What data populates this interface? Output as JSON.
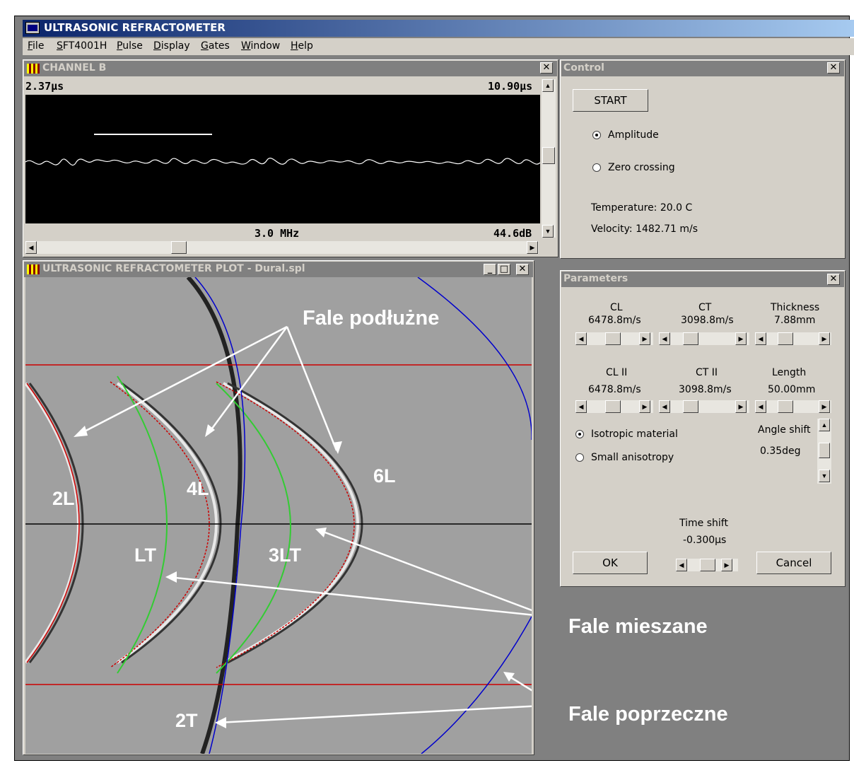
{
  "app": {
    "title": "ULTRASONIC REFRACTOMETER"
  },
  "menu": [
    "File",
    "SFT4001H",
    "Pulse",
    "Display",
    "Gates",
    "Window",
    "Help"
  ],
  "channel": {
    "title": "CHANNEL B",
    "time_start": "2.37µs",
    "time_end": "10.90µs",
    "frequency": "3.0 MHz",
    "gain": "44.6dB"
  },
  "control": {
    "title": "Control",
    "start": "START",
    "amplitude": "Amplitude",
    "zero_crossing": "Zero crossing",
    "mode_selected": "Amplitude",
    "temperature": "Temperature: 20.0 C",
    "velocity": "Velocity: 1482.71 m/s"
  },
  "plot": {
    "title": "ULTRASONIC REFRACTOMETER PLOT - Dural.spl"
  },
  "params": {
    "title": "Parameters",
    "cl_label": "CL",
    "cl_value": "6478.8m/s",
    "ct_label": "CT",
    "ct_value": "3098.8m/s",
    "thickness_label": "Thickness",
    "thickness_value": "7.88mm",
    "clii_label": "CL II",
    "clii_value": "6478.8m/s",
    "ctii_label": "CT II",
    "ctii_value": "3098.8m/s",
    "length_label": "Length",
    "length_value": "50.00mm",
    "isotropic": "Isotropic material",
    "anisotropy": "Small anisotropy",
    "material_selected": "Isotropic material",
    "angle_label": "Angle shift",
    "angle_value": "0.35deg",
    "time_label": "Time shift",
    "time_value": "-0.300µs",
    "ok": "OK",
    "cancel": "Cancel"
  },
  "annotations": {
    "fale_podluzne": "Fale podłużne",
    "fale_mieszane": "Fale mieszane",
    "fale_poprzeczne": "Fale poprzeczne",
    "l2": "2L",
    "l4": "4L",
    "l6": "6L",
    "lt": "LT",
    "lt3": "3LT",
    "t2": "2T"
  },
  "colors": {
    "title_active": "#0a246a",
    "gray": "#808080",
    "face": "#d4d0c8",
    "red": "#cc0000",
    "green": "#33cc33",
    "blue": "#0000cc"
  }
}
